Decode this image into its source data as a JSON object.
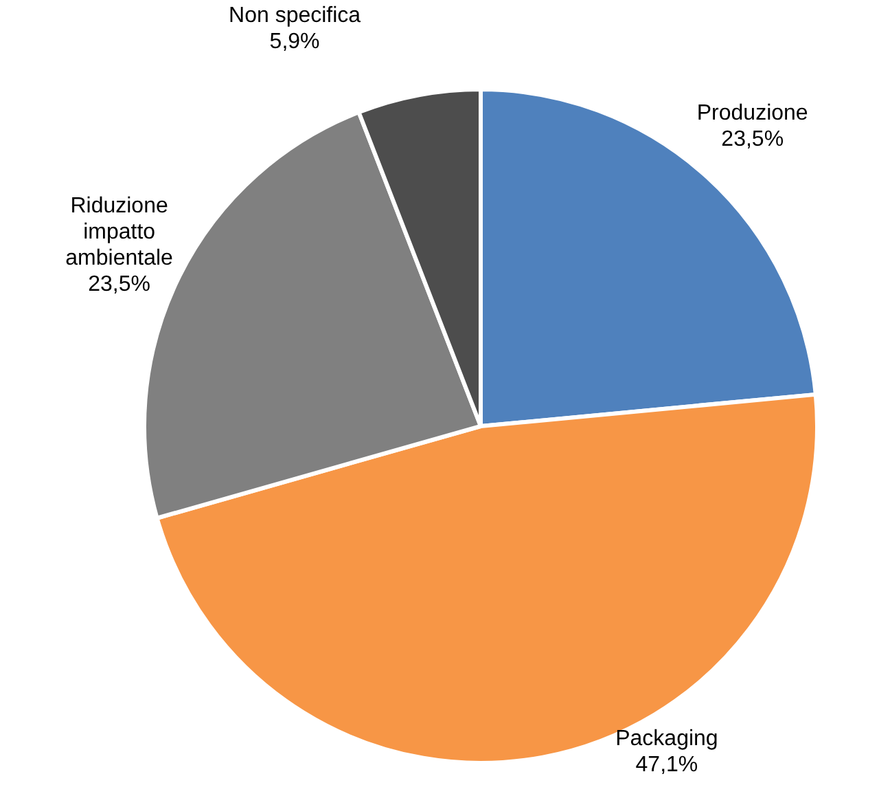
{
  "chart_data": {
    "type": "pie",
    "categories": [
      "Produzione",
      "Packaging",
      "Riduzione impatto ambientale",
      "Non specifica"
    ],
    "values": [
      23.5,
      47.1,
      23.5,
      5.9
    ],
    "colors": [
      "#4f81bd",
      "#f79646",
      "#808080",
      "#4d4d4d"
    ],
    "value_labels": [
      "23,5%",
      "47,1%",
      "23,5%",
      "5,9%"
    ]
  }
}
